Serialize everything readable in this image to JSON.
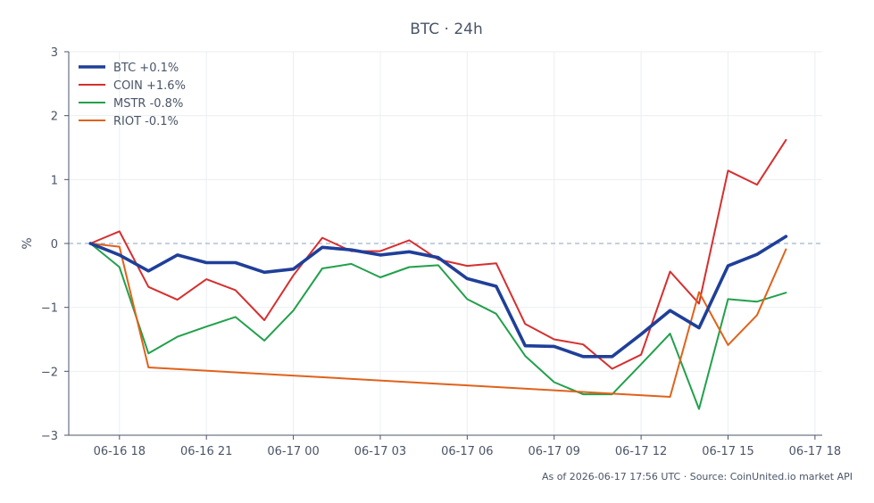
{
  "footer": {
    "caption": "As of 2026-06-17 17:56 UTC · Source: CoinUnited.io market API"
  },
  "chart_data": {
    "type": "line",
    "title": "BTC · 24h",
    "xlabel": "",
    "ylabel": "%",
    "x_ticks": [
      "06-16 18",
      "06-16 21",
      "06-17 00",
      "06-17 03",
      "06-17 06",
      "06-17 09",
      "06-17 12",
      "06-17 15",
      "06-17 18"
    ],
    "y_ticks": [
      3,
      2,
      1,
      0,
      -1,
      -2,
      -3
    ],
    "y_tick_labels": [
      "3",
      "2",
      "1",
      "0",
      "−1",
      "−2",
      "−3"
    ],
    "ylim": [
      -3,
      3
    ],
    "xlim": [
      "06-16 16:15",
      "06-17 18:15"
    ],
    "grid": true,
    "reference_line": {
      "y": 0,
      "style": "dashed"
    },
    "legend_position": "top-left",
    "x": [
      "06-16 17:00",
      "06-16 18:00",
      "06-16 19:00",
      "06-16 20:00",
      "06-16 21:00",
      "06-16 22:00",
      "06-16 23:00",
      "06-17 00:00",
      "06-17 01:00",
      "06-17 02:00",
      "06-17 03:00",
      "06-17 04:00",
      "06-17 05:00",
      "06-17 06:00",
      "06-17 07:00",
      "06-17 08:00",
      "06-17 09:00",
      "06-17 10:00",
      "06-17 11:00",
      "06-17 12:00",
      "06-17 13:00",
      "06-17 14:00",
      "06-17 15:00",
      "06-17 16:00",
      "06-17 17:00"
    ],
    "series": [
      {
        "name": "BTC +0.1%",
        "color": "#1f3f99",
        "emphasis": true,
        "values": [
          0.0,
          -0.18,
          -0.43,
          -0.18,
          -0.3,
          -0.3,
          -0.45,
          -0.4,
          -0.06,
          -0.1,
          -0.18,
          -0.13,
          -0.22,
          -0.55,
          -0.67,
          -1.6,
          -1.61,
          -1.77,
          -1.77,
          -1.42,
          -1.05,
          -1.32,
          -0.35,
          -0.17,
          0.11
        ]
      },
      {
        "name": "COIN +1.6%",
        "color": "#d62f2f",
        "values": [
          0.0,
          0.19,
          -0.68,
          -0.88,
          -0.56,
          -0.73,
          -1.2,
          -0.5,
          0.09,
          -0.12,
          -0.12,
          0.05,
          -0.25,
          -0.35,
          -0.31,
          -1.26,
          -1.5,
          -1.58,
          -1.96,
          -1.74,
          -0.44,
          -0.94,
          1.14,
          0.92,
          1.62
        ]
      },
      {
        "name": "MSTR -0.8%",
        "color": "#22a04b",
        "values": [
          0.0,
          -0.37,
          -1.72,
          -1.46,
          -1.3,
          -1.15,
          -1.52,
          -1.05,
          -0.39,
          -0.32,
          -0.53,
          -0.37,
          -0.34,
          -0.87,
          -1.1,
          -1.76,
          -2.17,
          -2.36,
          -2.36,
          -1.89,
          -1.41,
          -2.59,
          -0.87,
          -0.91,
          -0.77
        ]
      },
      {
        "name": "RIOT -0.1%",
        "color": "#e0621a",
        "values": [
          0.0,
          -0.05,
          -1.94,
          null,
          null,
          null,
          null,
          null,
          null,
          null,
          null,
          null,
          null,
          null,
          null,
          null,
          null,
          null,
          null,
          null,
          -2.4,
          -0.76,
          -1.59,
          -1.12,
          -0.09
        ]
      }
    ]
  }
}
